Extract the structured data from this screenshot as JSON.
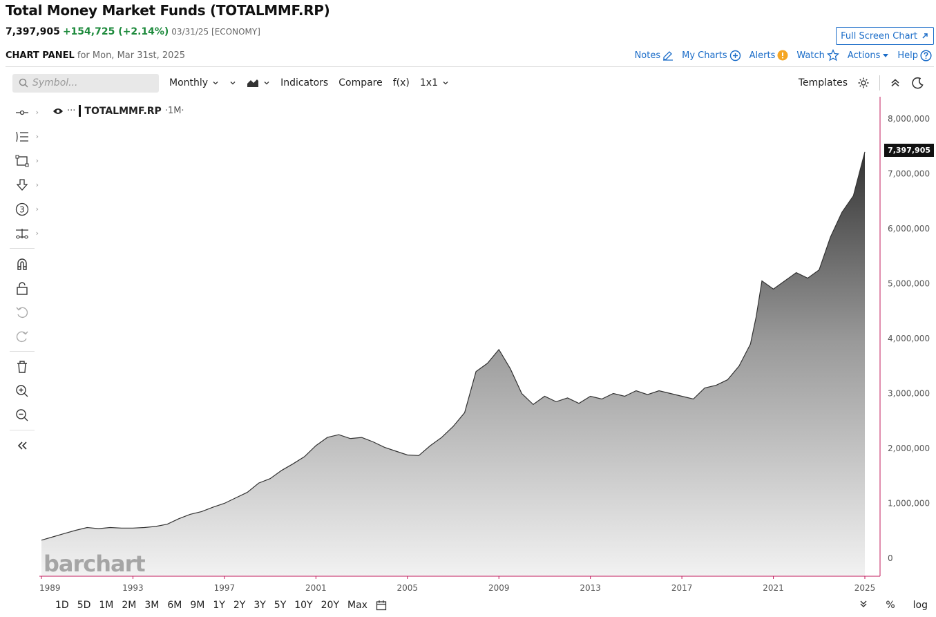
{
  "header": {
    "title": "Total Money Market Funds (TOTALMMF.RP)",
    "last": "7,397,905",
    "change": "+154,725 (+2.14%)",
    "meta": "03/31/25 [ECONOMY]",
    "fullscreen_label": "Full Screen Chart",
    "panel_label": "CHART PANEL",
    "panel_date": "for Mon, Mar 31st, 2025"
  },
  "panel_actions": {
    "notes": "Notes",
    "my_charts": "My Charts",
    "alerts": "Alerts",
    "watch": "Watch",
    "actions": "Actions",
    "help": "Help"
  },
  "toolbar": {
    "search_placeholder": "Symbol...",
    "interval": "Monthly",
    "indicators": "Indicators",
    "compare": "Compare",
    "fx": "f(x)",
    "layout": "1x1",
    "templates": "Templates"
  },
  "legend": {
    "symbol": "TOTALMMF.RP",
    "period": "·1M·"
  },
  "price_tag": "7,397,905",
  "watermark": "barchart",
  "range_buttons": [
    "1D",
    "5D",
    "1M",
    "2M",
    "3M",
    "6M",
    "9M",
    "1Y",
    "2Y",
    "3Y",
    "5Y",
    "10Y",
    "20Y",
    "Max"
  ],
  "bottom_right": {
    "percent": "%",
    "log": "log"
  },
  "colors": {
    "accent": "#1a6cc8",
    "positive": "#1d8a3c",
    "axis_line": "#c2185b",
    "area_top": "#333333",
    "area_bottom": "#f2f2f2"
  },
  "chart_data": {
    "type": "area",
    "ylim": [
      0,
      8000000
    ],
    "yticks": [
      "0",
      "1,000,000",
      "2,000,000",
      "3,000,000",
      "4,000,000",
      "5,000,000",
      "6,000,000",
      "7,000,000",
      "8,000,000"
    ],
    "ytick_values": [
      0,
      1000000,
      2000000,
      3000000,
      4000000,
      5000000,
      6000000,
      7000000,
      8000000
    ],
    "xticks": [
      "1989",
      "1993",
      "1997",
      "2001",
      "2005",
      "2009",
      "2013",
      "2017",
      "2021",
      "2025"
    ],
    "xtick_values": [
      1989,
      1993,
      1997,
      2001,
      2005,
      2009,
      2013,
      2017,
      2021,
      2025
    ],
    "xlim": [
      1989,
      2025
    ],
    "x": [
      1989.0,
      1989.5,
      1990.0,
      1990.5,
      1991.0,
      1991.5,
      1992.0,
      1992.5,
      1993.0,
      1993.5,
      1994.0,
      1994.5,
      1995.0,
      1995.5,
      1996.0,
      1996.5,
      1997.0,
      1997.5,
      1998.0,
      1998.5,
      1999.0,
      1999.5,
      2000.0,
      2000.5,
      2001.0,
      2001.5,
      2002.0,
      2002.5,
      2003.0,
      2003.5,
      2004.0,
      2004.5,
      2005.0,
      2005.5,
      2006.0,
      2006.5,
      2007.0,
      2007.5,
      2008.0,
      2008.5,
      2009.0,
      2009.5,
      2010.0,
      2010.5,
      2011.0,
      2011.5,
      2012.0,
      2012.5,
      2013.0,
      2013.5,
      2014.0,
      2014.5,
      2015.0,
      2015.5,
      2016.0,
      2016.5,
      2017.0,
      2017.5,
      2018.0,
      2018.5,
      2019.0,
      2019.5,
      2020.0,
      2020.25,
      2020.5,
      2021.0,
      2021.5,
      2022.0,
      2022.5,
      2023.0,
      2023.5,
      2024.0,
      2024.5,
      2025.0
    ],
    "values": [
      330000,
      390000,
      450000,
      510000,
      560000,
      540000,
      560000,
      550000,
      550000,
      560000,
      580000,
      620000,
      720000,
      800000,
      850000,
      930000,
      1000000,
      1100000,
      1200000,
      1370000,
      1450000,
      1600000,
      1720000,
      1850000,
      2050000,
      2200000,
      2250000,
      2180000,
      2200000,
      2120000,
      2020000,
      1950000,
      1880000,
      1870000,
      2050000,
      2200000,
      2400000,
      2650000,
      3400000,
      3550000,
      3800000,
      3450000,
      3000000,
      2800000,
      2950000,
      2850000,
      2920000,
      2820000,
      2950000,
      2900000,
      3000000,
      2950000,
      3050000,
      2980000,
      3050000,
      3000000,
      2950000,
      2900000,
      3100000,
      3150000,
      3250000,
      3500000,
      3900000,
      4400000,
      5050000,
      4900000,
      5050000,
      5200000,
      5100000,
      5250000,
      5850000,
      6300000,
      6600000,
      7397905
    ],
    "last_value": 7397905
  }
}
